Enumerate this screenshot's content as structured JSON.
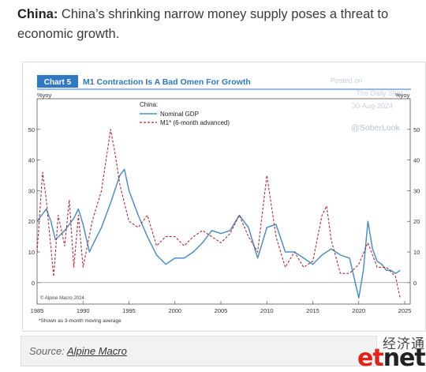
{
  "headline": {
    "bold": "China:",
    "text": " China’s shrinking narrow money supply poses a threat to economic growth."
  },
  "chart_data": {
    "type": "line",
    "chart_number": "Chart 5",
    "title": "M1 Contraction Is A Bad Omen For Growth",
    "y_unit": "%yoy",
    "ylim": [
      -7,
      60
    ],
    "xlim": [
      1985,
      2025.6
    ],
    "y_ticks": [
      0,
      10,
      20,
      30,
      40,
      50
    ],
    "x_ticks": [
      1985,
      1990,
      1995,
      2000,
      2005,
      2010,
      2015,
      2020,
      2025
    ],
    "legend_title": "China:",
    "legend_position": "top-left",
    "footnote": "*Shown as 3-month moving average",
    "credit": "© Alpine Macro 2024",
    "watermark": [
      "Posted on",
      "The Daily Shot",
      "30-Aug-2024",
      "@SoberLook"
    ],
    "colors": {
      "header": "#2e78c4",
      "gdp": "#4a90c8",
      "m1": "#b8283a"
    },
    "series": [
      {
        "name": "Nominal GDP",
        "style": "solid",
        "points": [
          [
            1985,
            20
          ],
          [
            1986,
            24
          ],
          [
            1986.5,
            20
          ],
          [
            1987,
            14
          ],
          [
            1988,
            17
          ],
          [
            1989,
            21
          ],
          [
            1989.5,
            24
          ],
          [
            1990,
            19
          ],
          [
            1990.7,
            10
          ],
          [
            1991,
            12
          ],
          [
            1992,
            18
          ],
          [
            1993,
            26
          ],
          [
            1994,
            35
          ],
          [
            1994.5,
            37
          ],
          [
            1995,
            30
          ],
          [
            1996,
            22
          ],
          [
            1997,
            15
          ],
          [
            1998,
            9
          ],
          [
            1999,
            6
          ],
          [
            2000,
            8
          ],
          [
            2001,
            8
          ],
          [
            2002,
            10
          ],
          [
            2003,
            13
          ],
          [
            2004,
            17
          ],
          [
            2005,
            16
          ],
          [
            2006,
            17
          ],
          [
            2007,
            22
          ],
          [
            2008,
            18
          ],
          [
            2009,
            8
          ],
          [
            2010,
            18
          ],
          [
            2011,
            19
          ],
          [
            2012,
            10
          ],
          [
            2013,
            10
          ],
          [
            2014,
            8
          ],
          [
            2015,
            6
          ],
          [
            2016,
            9
          ],
          [
            2017,
            11
          ],
          [
            2018,
            9
          ],
          [
            2019,
            8
          ],
          [
            2020,
            -5
          ],
          [
            2020.5,
            4
          ],
          [
            2021,
            20
          ],
          [
            2021.5,
            11
          ],
          [
            2022,
            7
          ],
          [
            2022.5,
            6
          ],
          [
            2023,
            4
          ],
          [
            2023.5,
            4
          ],
          [
            2024,
            3
          ],
          [
            2024.5,
            4
          ]
        ]
      },
      {
        "name": "M1* (6-month advanced)",
        "style": "dashed",
        "points": [
          [
            1985,
            10
          ],
          [
            1985.6,
            36
          ],
          [
            1986,
            27
          ],
          [
            1986.8,
            2
          ],
          [
            1987.3,
            22
          ],
          [
            1988,
            12
          ],
          [
            1988.5,
            27
          ],
          [
            1989,
            5
          ],
          [
            1989.5,
            22
          ],
          [
            1990,
            5
          ],
          [
            1991,
            20
          ],
          [
            1992,
            30
          ],
          [
            1993,
            50
          ],
          [
            1993.5,
            42
          ],
          [
            1994,
            32
          ],
          [
            1995,
            20
          ],
          [
            1996,
            18
          ],
          [
            1997,
            22
          ],
          [
            1998,
            12
          ],
          [
            1999,
            15
          ],
          [
            2000,
            15
          ],
          [
            2001,
            12
          ],
          [
            2002,
            15
          ],
          [
            2003,
            17
          ],
          [
            2004,
            15
          ],
          [
            2005,
            13
          ],
          [
            2006,
            16
          ],
          [
            2007,
            22
          ],
          [
            2008,
            15
          ],
          [
            2009,
            10
          ],
          [
            2010,
            35
          ],
          [
            2011,
            15
          ],
          [
            2012,
            5
          ],
          [
            2013,
            10
          ],
          [
            2014,
            5
          ],
          [
            2015,
            7
          ],
          [
            2016,
            22
          ],
          [
            2016.5,
            25
          ],
          [
            2017,
            14
          ],
          [
            2018,
            3
          ],
          [
            2019,
            3
          ],
          [
            2020,
            6
          ],
          [
            2021,
            13
          ],
          [
            2022,
            5
          ],
          [
            2023,
            5
          ],
          [
            2024,
            2
          ],
          [
            2024.5,
            -5
          ]
        ]
      }
    ]
  },
  "source": {
    "label": "Source:",
    "link": "Alpine Macro"
  },
  "logo": {
    "chinese": "经济通",
    "et": "et",
    "net": "net"
  }
}
